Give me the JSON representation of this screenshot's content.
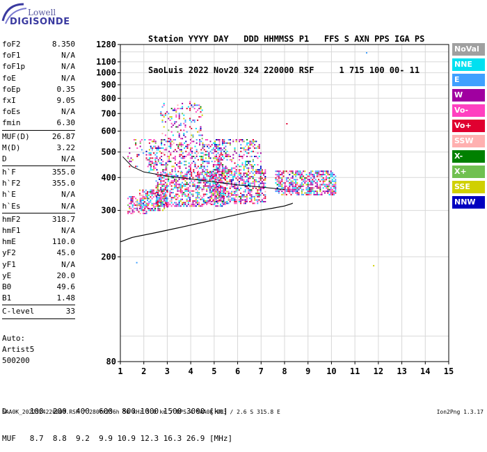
{
  "logo": {
    "line1": "Lowell",
    "line2": "DIGISONDE"
  },
  "header": {
    "line1": "Station YYYY DAY   DDD HHMMSS P1   FFS S AXN PPS IGA PS",
    "line2": "SaoLuis 2022 Nov20 324 220000 RSF     1 715 100 00- 11"
  },
  "params": [
    {
      "k": "foF2",
      "v": "8.350"
    },
    {
      "k": "foF1",
      "v": "N/A"
    },
    {
      "k": "foF1p",
      "v": "N/A"
    },
    {
      "k": "foE",
      "v": "N/A"
    },
    {
      "k": "foEp",
      "v": "0.35"
    },
    {
      "k": "fxI",
      "v": "9.05"
    },
    {
      "k": "foEs",
      "v": "N/A"
    },
    {
      "k": "fmin",
      "v": "6.30"
    },
    {
      "k": "MUF(D)",
      "v": "26.87"
    },
    {
      "k": "M(D)",
      "v": "3.22"
    },
    {
      "k": "D",
      "v": "N/A"
    },
    {
      "k": "h`F",
      "v": "355.0"
    },
    {
      "k": "h`F2",
      "v": "355.0"
    },
    {
      "k": "h`E",
      "v": "N/A"
    },
    {
      "k": "h`Es",
      "v": "N/A"
    },
    {
      "k": "hmF2",
      "v": "318.7"
    },
    {
      "k": "hmF1",
      "v": "N/A"
    },
    {
      "k": "hmE",
      "v": "110.0"
    },
    {
      "k": "yF2",
      "v": "45.0"
    },
    {
      "k": "yF1",
      "v": "N/A"
    },
    {
      "k": "yE",
      "v": "20.0"
    },
    {
      "k": "B0",
      "v": "49.6"
    },
    {
      "k": "B1",
      "v": "1.48"
    },
    {
      "k": "C-level",
      "v": "33"
    }
  ],
  "auto": {
    "l1": "Auto:",
    "l2": "Artist5",
    "l3": "500200"
  },
  "legend": [
    {
      "label": "NoVal",
      "color": "#a0a0a0"
    },
    {
      "label": "NNE",
      "color": "#00e0f0"
    },
    {
      "label": "E",
      "color": "#40a0ff"
    },
    {
      "label": "W",
      "color": "#a000a0"
    },
    {
      "label": "Vo-",
      "color": "#ff40c0"
    },
    {
      "label": "Vo+",
      "color": "#e00030"
    },
    {
      "label": "SSW",
      "color": "#ffb0b0"
    },
    {
      "label": "X-",
      "color": "#008000"
    },
    {
      "label": "X+",
      "color": "#70c050"
    },
    {
      "label": "SSE",
      "color": "#d0d000"
    },
    {
      "label": "NNW",
      "color": "#0000c0"
    }
  ],
  "muf_table": {
    "d_row": "D     100  200  400  600  800 1000 1500 3000 [km]",
    "muf_row": "MUF   8.7  8.8  9.2  9.9 10.9 12.3 16.3 26.9 [MHz]"
  },
  "footer": {
    "left": "SAA0K_2022324220000.RSF / 280fx256h 50 kHz 5.0 km / DPS-4 SAA0K 903 / 2.6 S 315.8 E",
    "right": "Ion2Png 1.3.17"
  },
  "chart_data": {
    "type": "scatter",
    "xlabel": "",
    "ylabel": "",
    "xlim": [
      1,
      15
    ],
    "ylim": [
      80,
      1280
    ],
    "x_ticks": [
      1,
      2,
      3,
      4,
      5,
      6,
      7,
      8,
      9,
      10,
      11,
      12,
      13,
      14,
      15
    ],
    "y_ticks": [
      80,
      200,
      300,
      400,
      500,
      600,
      700,
      800,
      900,
      1000,
      1100,
      1280
    ],
    "y_scale": "log",
    "grid": true,
    "profile_curve": {
      "x": [
        1.0,
        1.5,
        2.5,
        3.5,
        4.5,
        5.5,
        6.5,
        7.5,
        8.0,
        8.3,
        8.35
      ],
      "y": [
        228,
        237,
        247,
        258,
        270,
        283,
        296,
        306,
        312,
        318,
        320
      ]
    },
    "secondary_curve": {
      "x": [
        1.1,
        1.5,
        2.0,
        3.0,
        4.0,
        5.0,
        6.0,
        7.0,
        7.5,
        8.0
      ],
      "y": [
        480,
        440,
        420,
        405,
        395,
        385,
        375,
        368,
        364,
        360
      ]
    },
    "echo_regions": [
      {
        "x": [
          1.3,
          2.2
        ],
        "y": [
          290,
          340
        ],
        "density": 0.55
      },
      {
        "x": [
          1.8,
          3.0
        ],
        "y": [
          300,
          360
        ],
        "density": 0.5
      },
      {
        "x": [
          2.5,
          5.5
        ],
        "y": [
          310,
          420
        ],
        "density": 0.55
      },
      {
        "x": [
          2.2,
          5.5
        ],
        "y": [
          420,
          560
        ],
        "density": 0.35
      },
      {
        "x": [
          2.7,
          4.5
        ],
        "y": [
          560,
          780
        ],
        "density": 0.18
      },
      {
        "x": [
          4.8,
          7.2
        ],
        "y": [
          320,
          430
        ],
        "density": 0.55
      },
      {
        "x": [
          5.0,
          7.0
        ],
        "y": [
          430,
          560
        ],
        "density": 0.28
      },
      {
        "x": [
          7.6,
          10.2
        ],
        "y": [
          345,
          425
        ],
        "density": 0.6
      },
      {
        "x": [
          1.3,
          2.5
        ],
        "y": [
          440,
          560
        ],
        "density": 0.2
      }
    ],
    "outliers": [
      {
        "x": 11.5,
        "y": 1190,
        "color": "#40a0ff"
      },
      {
        "x": 1.7,
        "y": 190,
        "color": "#40a0ff"
      },
      {
        "x": 11.8,
        "y": 185,
        "color": "#d0d000"
      },
      {
        "x": 8.1,
        "y": 640,
        "color": "#e00030"
      }
    ]
  }
}
